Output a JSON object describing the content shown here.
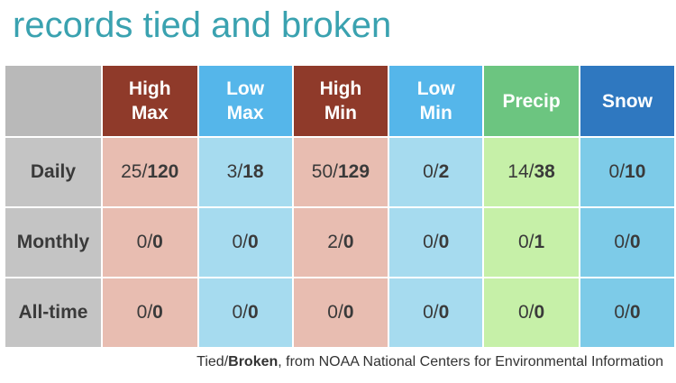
{
  "title": "records tied and broken",
  "chart_data": {
    "type": "table",
    "columns": [
      {
        "key": "high_max",
        "label": [
          "High",
          "Max"
        ],
        "header_color": "#8f3a2a",
        "cell_color": "#e8bdb1"
      },
      {
        "key": "low_max",
        "label": [
          "Low",
          "Max"
        ],
        "header_color": "#55b6ea",
        "cell_color": "#a6dbef"
      },
      {
        "key": "high_min",
        "label": [
          "High",
          "Min"
        ],
        "header_color": "#8f3a2a",
        "cell_color": "#e8bdb1"
      },
      {
        "key": "low_min",
        "label": [
          "Low",
          "Min"
        ],
        "header_color": "#55b6ea",
        "cell_color": "#a6dbef"
      },
      {
        "key": "precip",
        "label": [
          "Precip"
        ],
        "header_color": "#6cc580",
        "cell_color": "#c6f0a8"
      },
      {
        "key": "snow",
        "label": [
          "Snow"
        ],
        "header_color": "#2f78c0",
        "cell_color": "#7dcbe8"
      }
    ],
    "rows": [
      {
        "label": "Daily",
        "cells": [
          {
            "tied": "25",
            "broken": "120"
          },
          {
            "tied": "3",
            "broken": "18"
          },
          {
            "tied": "50",
            "broken": "129"
          },
          {
            "tied": "0",
            "broken": "2"
          },
          {
            "tied": "14",
            "broken": "38"
          },
          {
            "tied": "0",
            "broken": "10"
          }
        ]
      },
      {
        "label": "Monthly",
        "cells": [
          {
            "tied": "0",
            "broken": "0"
          },
          {
            "tied": "0",
            "broken": "0"
          },
          {
            "tied": "2",
            "broken": "0"
          },
          {
            "tied": "0",
            "broken": "0"
          },
          {
            "tied": "0",
            "broken": "1"
          },
          {
            "tied": "0",
            "broken": "0"
          }
        ]
      },
      {
        "label": "All-time",
        "cells": [
          {
            "tied": "0",
            "broken": "0"
          },
          {
            "tied": "0",
            "broken": "0"
          },
          {
            "tied": "0",
            "broken": "0"
          },
          {
            "tied": "0",
            "broken": "0"
          },
          {
            "tied": "0",
            "broken": "0"
          },
          {
            "tied": "0",
            "broken": "0"
          }
        ]
      }
    ],
    "separator": "/"
  },
  "caption": {
    "tied": "Tied",
    "separator": "/",
    "broken": "Broken",
    "source": ", from NOAA National Centers for Environmental Information"
  }
}
